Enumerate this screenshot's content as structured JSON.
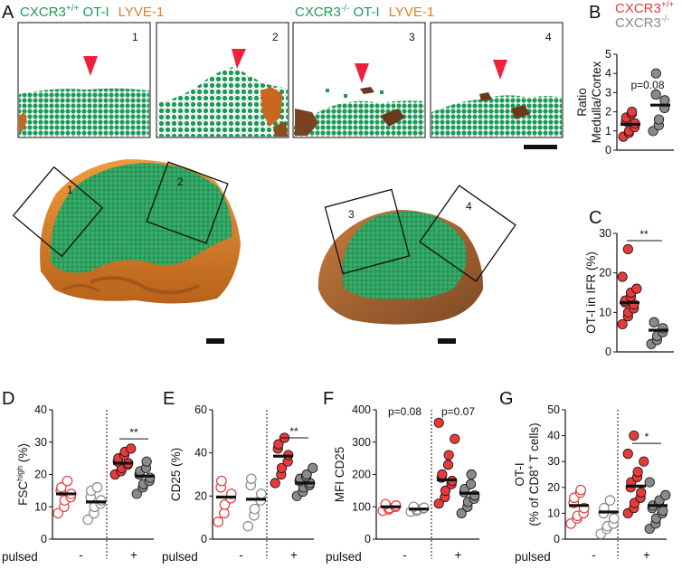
{
  "colors": {
    "cxcr3_wt": "#e63b3b",
    "cxcr3_ko": "#8a8a8a",
    "ot1_cells": "#1e9a57",
    "lyve1": "#e07d2a",
    "arrow": "#f0203a"
  },
  "panel_a": {
    "letter": "A",
    "left_title_a": "CXCR3",
    "left_title_sup": "+/+",
    "left_title_b": " OT-I",
    "left_title_c": "LYVE-1",
    "right_title_a": "CXCR3",
    "right_title_sup": "-/-",
    "right_title_b": " OT-I",
    "right_title_c": "LYVE-1",
    "zoom_labels": [
      "1",
      "2",
      "3",
      "4"
    ],
    "box_labels": [
      "1",
      "2",
      "3",
      "4"
    ]
  },
  "legend": {
    "wt_a": "CXCR3",
    "wt_sup": "+/+",
    "ko_a": "CXCR3",
    "ko_sup": "-/-"
  },
  "chart_data": [
    {
      "id": "B",
      "letter": "B",
      "type": "scatter",
      "ylabel_line1": "Ratio",
      "ylabel_line2": "Medulla/Cortex",
      "ylim": [
        0,
        5
      ],
      "yticks": [
        "0",
        "1",
        "2",
        "3",
        "4",
        "5"
      ],
      "annotation": "p=0.08",
      "groups": [
        {
          "name": "CXCR3+/+",
          "values": [
            0.7,
            0.9,
            1.0,
            1.2,
            1.4,
            1.5,
            1.7,
            1.9,
            2.0
          ],
          "mean": 1.35
        },
        {
          "name": "CXCR3-/-",
          "values": [
            1.0,
            1.3,
            1.6,
            2.2,
            2.6,
            2.9,
            4.0
          ],
          "mean": 2.35
        }
      ]
    },
    {
      "id": "C",
      "letter": "C",
      "type": "scatter",
      "ylabel": "OT-I in IFR (%)",
      "ylim": [
        0,
        30
      ],
      "yticks": [
        "0",
        "10",
        "20",
        "30"
      ],
      "annotation": "**",
      "groups": [
        {
          "name": "CXCR3+/+",
          "values": [
            7,
            9,
            10,
            11,
            12,
            12.5,
            13,
            14,
            15,
            16,
            19,
            26
          ],
          "mean": 12.5
        },
        {
          "name": "CXCR3-/-",
          "values": [
            2,
            3,
            4,
            5,
            6,
            7.5
          ],
          "mean": 5.5
        }
      ]
    },
    {
      "id": "D",
      "letter": "D",
      "type": "scatter",
      "ylabel_main": "FSC",
      "ylabel_sup": "high",
      "ylabel_tail": " (%)",
      "ylim": [
        0,
        40
      ],
      "yticks": [
        "0",
        "10",
        "20",
        "30",
        "40"
      ],
      "xlabel": "pulsed",
      "xcats": [
        "-",
        "+"
      ],
      "annotations": [
        "**"
      ],
      "groups": [
        {
          "name": "wt unpulsed",
          "filled": false,
          "values": [
            8,
            10,
            12,
            13,
            14,
            15,
            16,
            18
          ],
          "mean": 14
        },
        {
          "name": "ko unpulsed",
          "filled": false,
          "values": [
            6,
            8,
            10,
            11,
            12,
            13,
            15,
            16
          ],
          "mean": 11.5
        },
        {
          "name": "wt pulsed",
          "filled": true,
          "values": [
            20,
            21,
            22,
            23,
            23.5,
            24,
            25,
            26,
            27,
            28
          ],
          "mean": 23.5
        },
        {
          "name": "ko pulsed",
          "filled": true,
          "values": [
            14,
            16,
            17,
            18,
            19,
            20,
            21,
            22,
            24
          ],
          "mean": 19.5
        }
      ]
    },
    {
      "id": "E",
      "letter": "E",
      "type": "scatter",
      "ylabel": "CD25 (%)",
      "ylim": [
        0,
        60
      ],
      "yticks": [
        "0",
        "20",
        "40",
        "60"
      ],
      "xlabel": "pulsed",
      "xcats": [
        "-",
        "+"
      ],
      "annotations": [
        "**"
      ],
      "groups": [
        {
          "name": "wt unpulsed",
          "filled": false,
          "values": [
            8,
            12,
            16,
            19,
            21,
            24,
            27
          ],
          "mean": 19.5
        },
        {
          "name": "ko unpulsed",
          "filled": false,
          "values": [
            6,
            11,
            14,
            18,
            21,
            25,
            28
          ],
          "mean": 18.5
        },
        {
          "name": "wt pulsed",
          "filled": true,
          "values": [
            26,
            30,
            33,
            36,
            39,
            42,
            44,
            47
          ],
          "mean": 38.5
        },
        {
          "name": "ko pulsed",
          "filled": true,
          "values": [
            20,
            22,
            24,
            25,
            26,
            27,
            28,
            29,
            30,
            33
          ],
          "mean": 26
        }
      ]
    },
    {
      "id": "F",
      "letter": "F",
      "type": "scatter",
      "ylabel": "MFI CD25",
      "ylim": [
        0,
        400
      ],
      "yticks": [
        "0",
        "100",
        "200",
        "300",
        "400"
      ],
      "xlabel": "pulsed",
      "xcats": [
        "-",
        "+"
      ],
      "annotations": [
        "p=0.08",
        "p=0.07"
      ],
      "groups": [
        {
          "name": "wt unpulsed",
          "filled": false,
          "values": [
            88,
            92,
            96,
            100,
            104,
            108
          ],
          "mean": 100
        },
        {
          "name": "ko unpulsed",
          "filled": false,
          "values": [
            85,
            88,
            92,
            95,
            97,
            100
          ],
          "mean": 93
        },
        {
          "name": "wt pulsed",
          "filled": true,
          "values": [
            110,
            130,
            150,
            170,
            180,
            190,
            200,
            230,
            260,
            310,
            360
          ],
          "mean": 183
        },
        {
          "name": "ko pulsed",
          "filled": true,
          "values": [
            80,
            100,
            115,
            125,
            135,
            145,
            155,
            170,
            200
          ],
          "mean": 142
        }
      ]
    },
    {
      "id": "G",
      "letter": "G",
      "type": "scatter",
      "ylabel_line1": "OT-I",
      "ylabel_line2_a": "(% of CD8",
      "ylabel_line2_sup": "+",
      "ylabel_line2_b": " T cells)",
      "ylim": [
        0,
        50
      ],
      "yticks": [
        "0",
        "10",
        "20",
        "30",
        "40",
        "50"
      ],
      "xlabel": "pulsed",
      "xcats": [
        "-",
        "+"
      ],
      "annotations": [
        "*"
      ],
      "groups": [
        {
          "name": "wt unpulsed",
          "filled": false,
          "values": [
            6,
            8,
            9,
            10,
            12,
            14,
            16,
            18,
            19
          ],
          "mean": 13
        },
        {
          "name": "ko unpulsed",
          "filled": false,
          "values": [
            2,
            4,
            5,
            6,
            8,
            10,
            12,
            15
          ],
          "mean": 10.5
        },
        {
          "name": "wt pulsed",
          "filled": true,
          "values": [
            10,
            12,
            14,
            16,
            18,
            20,
            22,
            24,
            26,
            30,
            33,
            40
          ],
          "mean": 20.5
        },
        {
          "name": "ko pulsed",
          "filled": true,
          "values": [
            4,
            6,
            8,
            10,
            11,
            12,
            13,
            14,
            15,
            17,
            22
          ],
          "mean": 13
        }
      ]
    }
  ]
}
